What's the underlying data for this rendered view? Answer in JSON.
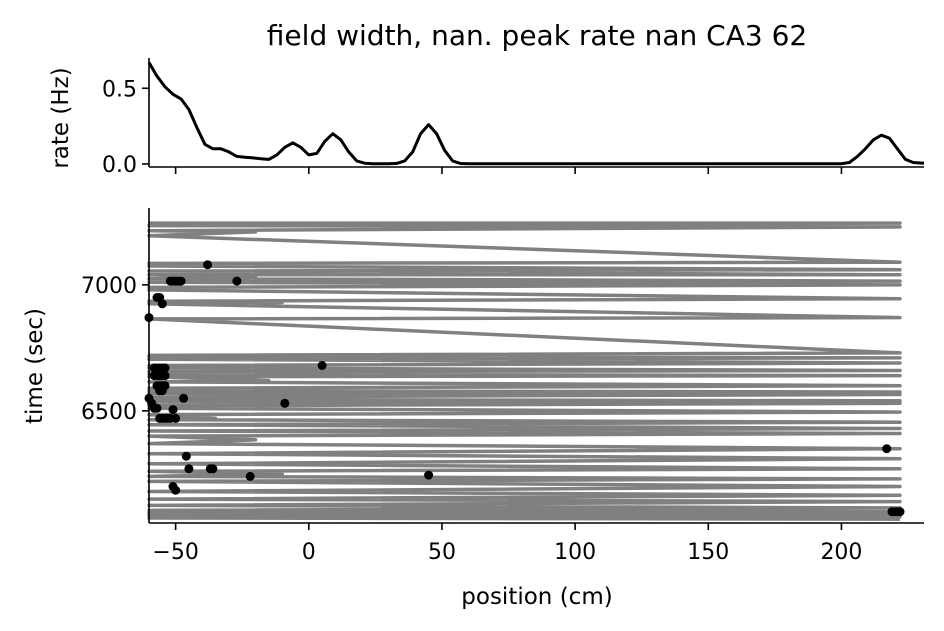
{
  "chart_data": [
    {
      "type": "line",
      "title": "field width, nan. peak rate nan CA3 62",
      "ylabel": "rate (Hz)",
      "xlabel": "",
      "xlim": [
        -60,
        231
      ],
      "ylim": [
        -0.02,
        0.7
      ],
      "yticks": [
        0.0,
        0.5
      ],
      "ytick_labels": [
        "0.0",
        "0.5"
      ],
      "xticks": [
        -50,
        0,
        50,
        100,
        150,
        200
      ],
      "series": [
        {
          "name": "rate",
          "color": "#000000",
          "x": [
            -60,
            -57,
            -54,
            -51,
            -48,
            -45,
            -42,
            -39,
            -36,
            -33,
            -30,
            -27,
            -24,
            -21,
            -18,
            -15,
            -12,
            -9,
            -6,
            -3,
            0,
            3,
            6,
            9,
            12,
            15,
            18,
            21,
            24,
            27,
            30,
            33,
            36,
            39,
            42,
            45,
            48,
            51,
            54,
            57,
            60,
            70,
            80,
            90,
            100,
            120,
            140,
            160,
            180,
            195,
            200,
            203,
            206,
            209,
            212,
            215,
            218,
            221,
            224,
            227,
            231
          ],
          "y": [
            0.67,
            0.58,
            0.51,
            0.46,
            0.43,
            0.36,
            0.24,
            0.13,
            0.1,
            0.1,
            0.08,
            0.05,
            0.045,
            0.04,
            0.035,
            0.03,
            0.06,
            0.11,
            0.14,
            0.11,
            0.06,
            0.07,
            0.15,
            0.2,
            0.16,
            0.08,
            0.02,
            0.005,
            0.002,
            0.002,
            0.002,
            0.004,
            0.02,
            0.08,
            0.2,
            0.26,
            0.2,
            0.09,
            0.02,
            0.003,
            0.001,
            0.001,
            0.001,
            0.001,
            0.001,
            0.001,
            0.001,
            0.001,
            0.001,
            0.001,
            0.002,
            0.01,
            0.05,
            0.1,
            0.16,
            0.19,
            0.17,
            0.1,
            0.03,
            0.01,
            0.005
          ]
        }
      ]
    },
    {
      "type": "scatter",
      "title": "",
      "xlabel": "position (cm)",
      "ylabel": "time (sec)",
      "xlim": [
        -60,
        231
      ],
      "ylim": [
        6055,
        7305
      ],
      "xticks": [
        -50,
        0,
        50,
        100,
        150,
        200
      ],
      "xtick_labels": [
        "−50",
        "0",
        "50",
        "100",
        "150",
        "200"
      ],
      "yticks": [
        6500,
        7000
      ],
      "ytick_labels": [
        "6500",
        "7000"
      ],
      "trajectory": {
        "name": "animal position",
        "color": "#808080",
        "x": [
          -60,
          222,
          -60,
          222,
          -60,
          -20,
          -60,
          222,
          -60,
          -30,
          -60,
          222,
          -60,
          222,
          -60,
          -20,
          -60,
          222,
          -60,
          222,
          -60,
          -40,
          -60,
          222,
          -60,
          -10,
          -60,
          222,
          -60,
          222,
          -60,
          -30,
          -60,
          222,
          -60,
          222,
          -60,
          -20,
          -60,
          222,
          -60,
          -25,
          -60,
          222,
          -60,
          -15,
          -60,
          222,
          -60,
          -40,
          -60,
          222,
          -60,
          222,
          -60,
          -30,
          -60,
          222,
          -60,
          222,
          -60,
          -30,
          -60,
          222,
          -60,
          -35,
          -60,
          222,
          -60,
          222,
          -60,
          222,
          -60,
          -20,
          -60,
          222,
          -60,
          222,
          -60,
          222,
          -60,
          -10,
          -60,
          222,
          -60,
          222,
          -60,
          222,
          -60,
          222,
          -60,
          222,
          -60,
          222,
          -60,
          222,
          -60,
          222,
          -60,
          222
        ],
        "y": [
          7245,
          7245,
          7235,
          7230,
          7215,
          7210,
          7195,
          7090,
          7085,
          7080,
          7075,
          7060,
          7055,
          7040,
          7040,
          7030,
          7025,
          7015,
          7010,
          7000,
          6990,
          6985,
          6980,
          6945,
          6935,
          6930,
          6925,
          6870,
          6865,
          6730,
          6720,
          6715,
          6715,
          6710,
          6705,
          6690,
          6680,
          6675,
          6670,
          6660,
          6655,
          6650,
          6645,
          6640,
          6635,
          6620,
          6615,
          6600,
          6590,
          6585,
          6580,
          6575,
          6570,
          6565,
          6555,
          6550,
          6545,
          6540,
          6535,
          6530,
          6520,
          6515,
          6510,
          6495,
          6485,
          6470,
          6465,
          6455,
          6445,
          6430,
          6420,
          6410,
          6400,
          6385,
          6370,
          6350,
          6330,
          6310,
          6290,
          6270,
          6260,
          6250,
          6240,
          6230,
          6220,
          6200,
          6180,
          6165,
          6150,
          6140,
          6125,
          6115,
          6105,
          6100,
          6095,
          6090,
          6085,
          6080,
          6075,
          6070
        ]
      },
      "spikes": {
        "name": "spikes",
        "color": "#000000",
        "x": [
          -38,
          -27,
          -52,
          -51,
          -50,
          -49,
          -48,
          -57,
          -56,
          -55,
          -60,
          -58,
          -57,
          -56,
          -55,
          -54,
          -58,
          -57,
          -56,
          -55,
          -54,
          -57,
          -56,
          -55,
          -54,
          -56,
          -55,
          -47,
          -60,
          -59,
          -58,
          -57,
          -56,
          -55,
          -54,
          -53,
          -52,
          -51,
          -50,
          -9,
          5,
          -46,
          -45,
          -37,
          -36,
          -22,
          -51,
          -50,
          45,
          217,
          219,
          220,
          221,
          222
        ],
        "y": [
          7080,
          7015,
          7015,
          7015,
          7015,
          7015,
          7015,
          6950,
          6950,
          6925,
          6870,
          6670,
          6670,
          6670,
          6670,
          6670,
          6640,
          6640,
          6640,
          6640,
          6640,
          6600,
          6600,
          6600,
          6600,
          6580,
          6580,
          6550,
          6550,
          6530,
          6510,
          6510,
          6470,
          6470,
          6470,
          6470,
          6470,
          6505,
          6470,
          6530,
          6680,
          6320,
          6270,
          6270,
          6270,
          6240,
          6200,
          6185,
          6245,
          6350,
          6100,
          6100,
          6100,
          6100
        ]
      }
    }
  ]
}
